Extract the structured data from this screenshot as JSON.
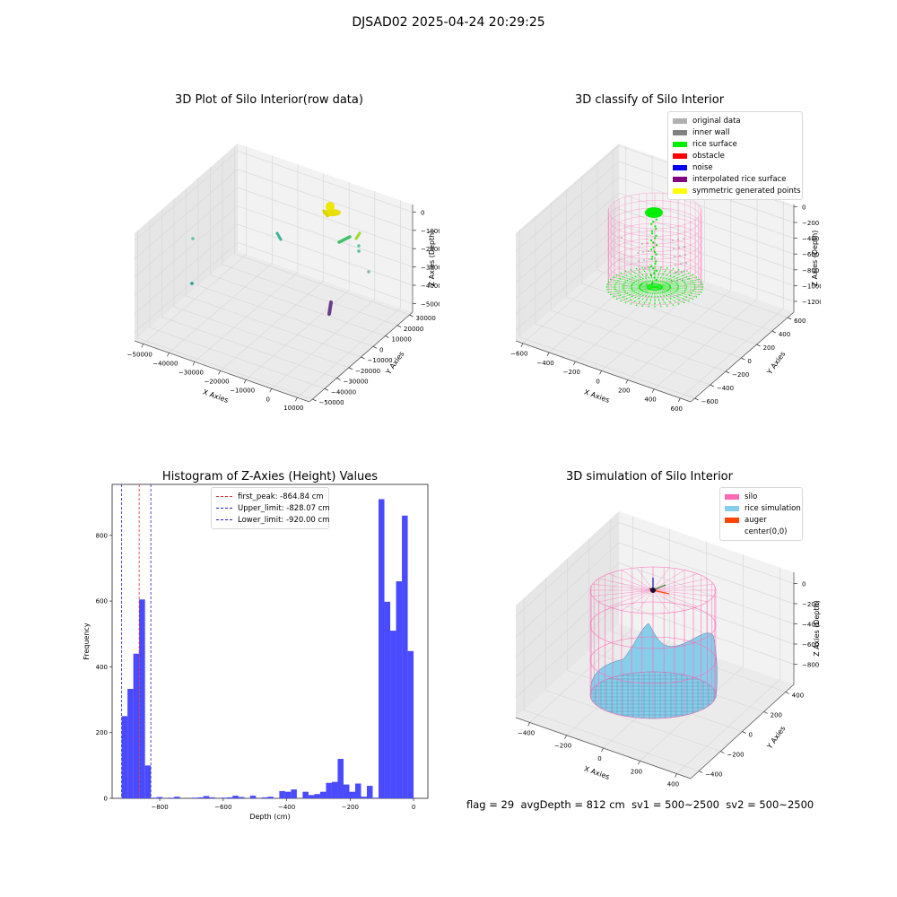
{
  "suptitle": "DJSAD02 2025-04-24 20:29:25",
  "footer": {
    "flag": "flag = 29",
    "avg": "avgDepth = 812 cm",
    "sv1": "sv1 = 500~2500",
    "sv2": "sv2 = 500~2500"
  },
  "colors": {
    "bar": "#4a4aff",
    "first_peak": "#e03030",
    "limits": "#2020c0",
    "silo": "#ff69b4",
    "rice_sim": "#87ceeb",
    "auger": "#ff4500",
    "rice_surface": "#00ee00",
    "pane": "#f2f2f2",
    "grid": "#d9d9d9"
  },
  "plot1": {
    "title": "3D Plot of Silo Interior(row data)",
    "xlabel": "X Axies",
    "ylabel": "Y Axies",
    "zlabel": "Z Axies (Depth)",
    "x_ticks": [
      "−50000",
      "−40000",
      "−30000",
      "−20000",
      "−10000",
      "0",
      "10000"
    ],
    "y_ticks": [
      "−50000",
      "−40000",
      "−30000",
      "−20000",
      "−10000",
      "0",
      "10000",
      "20000",
      "30000"
    ],
    "z_ticks": [
      "0",
      "−10000",
      "−20000",
      "−30000",
      "−40000",
      "−50000"
    ]
  },
  "plot2": {
    "title": "3D classify of Silo Interior",
    "xlabel": "X Axies",
    "ylabel": "Y Axies",
    "zlabel": "Z Axies (Depth)",
    "x_ticks": [
      "−600",
      "−400",
      "−200",
      "0",
      "200",
      "400",
      "600"
    ],
    "y_ticks": [
      "−600",
      "−400",
      "−200",
      "0",
      "200",
      "400",
      "600"
    ],
    "z_ticks": [
      "0",
      "−200",
      "−400",
      "−600",
      "−800",
      "−1000",
      "−1200"
    ],
    "legend": [
      {
        "label": "original data",
        "color": "#b0b0b0"
      },
      {
        "label": "inner wall",
        "color": "#808080"
      },
      {
        "label": "rice surface",
        "color": "#00ee00"
      },
      {
        "label": "obstacle",
        "color": "#ff0000"
      },
      {
        "label": "noise",
        "color": "#0000ee"
      },
      {
        "label": "interpolated rice surface",
        "color": "#800080"
      },
      {
        "label": "symmetric generated points",
        "color": "#ffff00"
      }
    ]
  },
  "plot4": {
    "title": "3D simulation of Silo Interior",
    "xlabel": "X Axies",
    "ylabel": "Y Axies",
    "zlabel": "Z Axies (Depth)",
    "x_ticks": [
      "−400",
      "−200",
      "0",
      "200",
      "400"
    ],
    "y_ticks": [
      "−400",
      "−200",
      "0",
      "200",
      "400"
    ],
    "z_ticks": [
      "0",
      "−200",
      "−400",
      "−600",
      "−800"
    ],
    "legend": [
      {
        "label": "silo",
        "color": "#ff69b4"
      },
      {
        "label": "rice simulation",
        "color": "#87ceeb"
      },
      {
        "label": "auger",
        "color": "#ff4500"
      },
      {
        "label": "center(0,0)",
        "color": "#ffffff"
      }
    ]
  },
  "chart_data": {
    "type": "bar",
    "title": "Histogram of Z-Axies (Height) Values",
    "xlabel": "Depth (cm)",
    "ylabel": "Frequency",
    "xlim": [
      -950,
      45
    ],
    "ylim": [
      0,
      955
    ],
    "x_ticks": [
      -800,
      -600,
      -400,
      -200,
      0
    ],
    "y_ticks": [
      0,
      200,
      400,
      600,
      800
    ],
    "bin_width": 18.4,
    "bins": [
      {
        "x": -920.0,
        "v": 250
      },
      {
        "x": -901.6,
        "v": 333
      },
      {
        "x": -883.2,
        "v": 440
      },
      {
        "x": -864.8,
        "v": 605
      },
      {
        "x": -846.4,
        "v": 100
      },
      {
        "x": -828.0,
        "v": 2
      },
      {
        "x": -809.6,
        "v": 4
      },
      {
        "x": -772.8,
        "v": 2
      },
      {
        "x": -754.4,
        "v": 5
      },
      {
        "x": -699.2,
        "v": 2
      },
      {
        "x": -680.8,
        "v": 3
      },
      {
        "x": -662.4,
        "v": 7
      },
      {
        "x": -644.0,
        "v": 3
      },
      {
        "x": -607.2,
        "v": 2
      },
      {
        "x": -588.8,
        "v": 3
      },
      {
        "x": -570.4,
        "v": 8
      },
      {
        "x": -552.0,
        "v": 4
      },
      {
        "x": -515.2,
        "v": 8
      },
      {
        "x": -478.4,
        "v": 3
      },
      {
        "x": -460.0,
        "v": 5
      },
      {
        "x": -423.2,
        "v": 22
      },
      {
        "x": -404.8,
        "v": 20
      },
      {
        "x": -386.4,
        "v": 27
      },
      {
        "x": -349.6,
        "v": 20
      },
      {
        "x": -331.2,
        "v": 10
      },
      {
        "x": -312.8,
        "v": 13
      },
      {
        "x": -294.4,
        "v": 20
      },
      {
        "x": -276.0,
        "v": 47
      },
      {
        "x": -257.6,
        "v": 50
      },
      {
        "x": -239.2,
        "v": 120
      },
      {
        "x": -220.8,
        "v": 42
      },
      {
        "x": -202.4,
        "v": 20
      },
      {
        "x": -184.0,
        "v": 45
      },
      {
        "x": -165.6,
        "v": 5
      },
      {
        "x": -147.2,
        "v": 38
      },
      {
        "x": -128.8,
        "v": 2
      },
      {
        "x": -110.4,
        "v": 910
      },
      {
        "x": -92.0,
        "v": 598
      },
      {
        "x": -73.6,
        "v": 510
      },
      {
        "x": -55.2,
        "v": 660
      },
      {
        "x": -36.8,
        "v": 860
      },
      {
        "x": -18.4,
        "v": 448
      }
    ],
    "vlines": [
      {
        "label": "first_peak: -864.84 cm",
        "x": -864.84,
        "color": "#e03030"
      },
      {
        "label": "Upper_limit: -828.07 cm",
        "x": -828.07,
        "color": "#2020c0"
      },
      {
        "label": "Lower_limit: -920.00 cm",
        "x": -920.0,
        "color": "#2020c0"
      }
    ]
  }
}
